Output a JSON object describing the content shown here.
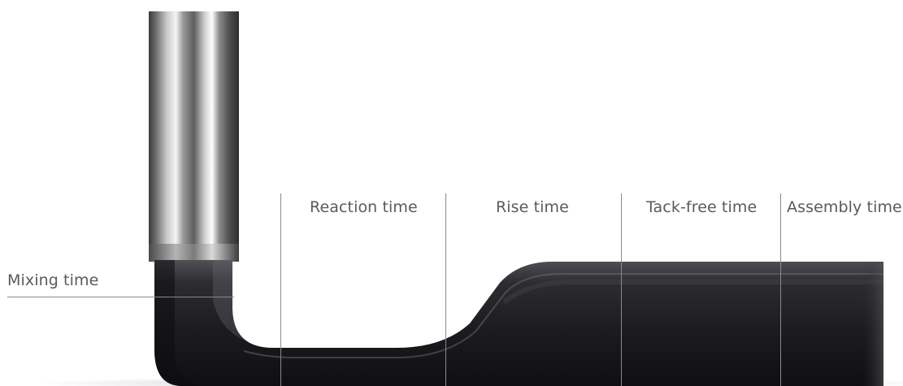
{
  "stages": {
    "mixing": "Mixing time",
    "reaction": "Reaction time",
    "rise": "Rise time",
    "tack_free": "Tack-free time",
    "assembly": "Assembly time"
  },
  "colors": {
    "label_text": "#5a5a5a",
    "divider_line": "#8a8a8a",
    "foam_body": "#2a2a2e",
    "nozzle_metal": "#9a9a9a"
  }
}
